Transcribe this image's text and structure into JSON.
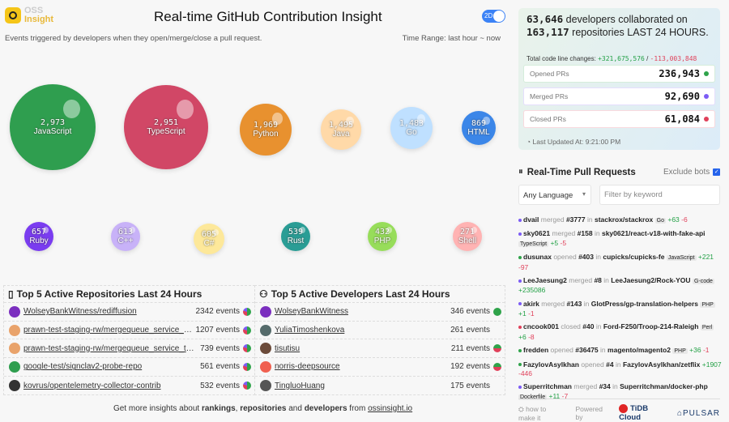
{
  "header": {
    "logo_text_1": "OSS",
    "logo_text_2": "Insight",
    "title": "Real-time GitHub Contribution Insight",
    "toggle_label": "2D",
    "subtitle": "Events triggered by developers when they open/merge/close a pull request.",
    "time_range": "Time Range: last hour ~ now"
  },
  "bubbles": [
    {
      "name": "JavaScript",
      "value": "2,973",
      "color": "#2f9e4f"
    },
    {
      "name": "TypeScript",
      "value": "2,951",
      "color": "#d14766"
    },
    {
      "name": "Python",
      "value": "1,969",
      "color": "#e8912f"
    },
    {
      "name": "Java",
      "value": "1,495",
      "color": "#ffd9a8"
    },
    {
      "name": "Go",
      "value": "1,483",
      "color": "#bfe0ff"
    },
    {
      "name": "HTML",
      "value": "869",
      "color": "#3b86e8"
    },
    {
      "name": "Ruby",
      "value": "657",
      "color": "#7a3cf0"
    },
    {
      "name": "C++",
      "value": "613",
      "color": "#c8b2f8"
    },
    {
      "name": "C#",
      "value": "605",
      "color": "#fde89a"
    },
    {
      "name": "Rust",
      "value": "539",
      "color": "#2a9d95"
    },
    {
      "name": "PHP",
      "value": "432",
      "color": "#97dd5a"
    },
    {
      "name": "Shell",
      "value": "271",
      "color": "#ffb3b3"
    }
  ],
  "repos": {
    "title": "Top 5 Active Repositories Last 24 Hours",
    "rows": [
      {
        "name": "WolseyBankWitness/rediffusion",
        "events": "2342 events",
        "avatar": "#7b2fbf"
      },
      {
        "name": "prawn-test-staging-rw/mergequeue_service_test",
        "events": "1207 events",
        "avatar": "#e9a36b"
      },
      {
        "name": "prawn-test-staging-rw/mergequeue_service_tes...",
        "events": "739 events",
        "avatar": "#e9a36b"
      },
      {
        "name": "google-test/signclav2-probe-repo",
        "events": "561 events",
        "avatar": "#2f9e4f"
      },
      {
        "name": "kovrus/opentelemetry-collector-contrib",
        "events": "532 events",
        "avatar": "#333333"
      }
    ]
  },
  "devs": {
    "title": "Top 5 Active Developers Last 24 Hours",
    "rows": [
      {
        "name": "WolseyBankWitness",
        "events": "346 events",
        "avatar": "#7b2fbf",
        "pie": true
      },
      {
        "name": "YuliaTimoshenkova",
        "events": "261 events",
        "avatar": "#556b6b",
        "pie": false
      },
      {
        "name": "tisutisu",
        "events": "211 events",
        "avatar": "#6b4b3a",
        "pie": true
      },
      {
        "name": "norris-deepsource",
        "events": "192 events",
        "avatar": "#f06050",
        "pie": true
      },
      {
        "name": "TingluoHuang",
        "events": "175 events",
        "avatar": "#555555",
        "pie": false
      }
    ]
  },
  "footer": {
    "prefix": "Get more insights about ",
    "rankings": "rankings",
    "sep": ", ",
    "repositories": "repositories",
    "and": " and ",
    "developers": "developers",
    "from": " from ",
    "link": "ossinsight.io"
  },
  "summary": {
    "developers": "63,646",
    "dev_text": " developers collaborated on",
    "repositories": "163,117",
    "repo_text": " repositories LAST 24 HOURS.",
    "code_label": "Total code line changes: ",
    "additions": "+321,675,576",
    "slash": " / ",
    "deletions": "-113,003,848",
    "stats": [
      {
        "label": "Opened PRs",
        "value": "236,943",
        "color": "#2fa34a"
      },
      {
        "label": "Merged PRs",
        "value": "92,690",
        "color": "#7c5cf5"
      },
      {
        "label": "Closed PRs",
        "value": "61,084",
        "color": "#e0405a"
      }
    ],
    "updated": "Last Updated At: 9:21:00 PM"
  },
  "pr_feed": {
    "title": "Real-Time Pull Requests",
    "exclude_bots": "Exclude bots",
    "exclude_checked": true,
    "language": "Any Language",
    "keyword_placeholder": "Filter by keyword",
    "items": [
      {
        "user": "dvail",
        "action": "merged",
        "num": "#3777",
        "in": "in",
        "repo": "stackrox/stackrox",
        "lang": "Go",
        "add": "+63",
        "del": "-6",
        "color": "#7c5cf5"
      },
      {
        "user": "sky0621",
        "action": "merged",
        "num": "#158",
        "in": "in",
        "repo": "sky0621/react-v18-with-fake-api",
        "lang": "TypeScript",
        "add": "+5",
        "del": "-5",
        "color": "#7c5cf5"
      },
      {
        "user": "dusunax",
        "action": "opened",
        "num": "#403",
        "in": "in",
        "repo": "cupicks/cupicks-fe",
        "lang": "JavaScript",
        "add": "+221",
        "del": "-97",
        "color": "#2fa34a"
      },
      {
        "user": "LeeJaesung2",
        "action": "merged",
        "num": "#8",
        "in": "in",
        "repo": "LeeJaesung2/Rock-YOU",
        "lang": "G-code",
        "add": "+235086",
        "del": "",
        "color": "#7c5cf5"
      },
      {
        "user": "akirk",
        "action": "merged",
        "num": "#143",
        "in": "in",
        "repo": "GlotPress/gp-translation-helpers",
        "lang": "PHP",
        "add": "+1",
        "del": "-1",
        "color": "#7c5cf5"
      },
      {
        "user": "cncook001",
        "action": "closed",
        "num": "#40",
        "in": "in",
        "repo": "Ford-F250/Troop-214-Raleigh",
        "lang": "Perl",
        "add": "+6",
        "del": "-8",
        "color": "#e0405a"
      },
      {
        "user": "fredden",
        "action": "opened",
        "num": "#36475",
        "in": "in",
        "repo": "magento/magento2",
        "lang": "PHP",
        "add": "+36",
        "del": "-1",
        "color": "#2fa34a"
      },
      {
        "user": "FazylovAsylkhan",
        "action": "opened",
        "num": "#4",
        "in": "in",
        "repo": "FazylovAsylkhan/zetflix",
        "lang": "",
        "add": "+1907",
        "del": "-446",
        "color": "#2fa34a"
      },
      {
        "user": "Superritchman",
        "action": "merged",
        "num": "#34",
        "in": "in",
        "repo": "Superritchman/docker-php",
        "lang": "Dockerfile",
        "add": "+11",
        "del": "-7",
        "color": "#7c5cf5"
      }
    ]
  },
  "bottom": {
    "how": "how to make it",
    "powered": "Powered by",
    "tidb": "TiDB Cloud",
    "pulsar": "PULSAR"
  }
}
